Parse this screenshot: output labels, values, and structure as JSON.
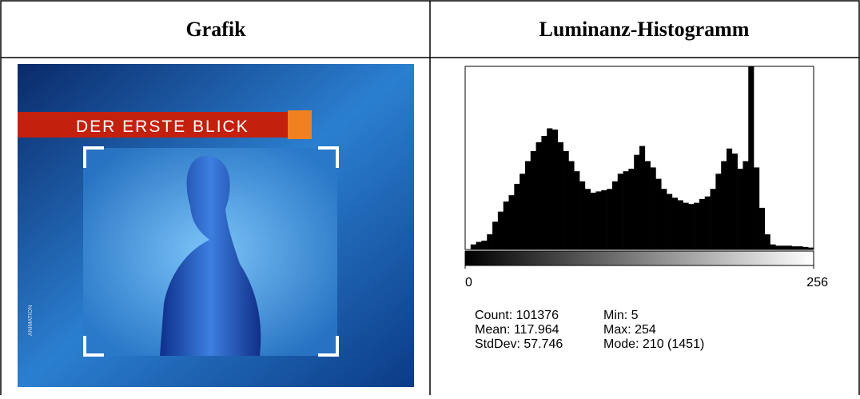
{
  "table": {
    "headers": [
      "Grafik",
      "Luminanz-Histogramm"
    ]
  },
  "image": {
    "banner": "DER ERSTE BLICK",
    "side_label": "ANIMATION"
  },
  "chart_data": {
    "type": "histogram",
    "color": "#000000",
    "bins": [
      0,
      4,
      8,
      12,
      16,
      20,
      24,
      28,
      32,
      36,
      40,
      44,
      48,
      52,
      56,
      60,
      64,
      68,
      72,
      76,
      80,
      84,
      88,
      92,
      96,
      100,
      104,
      108,
      112,
      116,
      120,
      124,
      128,
      132,
      136,
      140,
      144,
      148,
      152,
      156,
      160,
      164,
      168,
      172,
      176,
      180,
      184,
      188,
      192,
      196,
      200,
      204,
      208,
      212,
      216,
      220,
      224,
      228,
      232,
      236,
      240,
      244,
      248,
      252,
      256
    ],
    "values": [
      0,
      40,
      60,
      70,
      120,
      220,
      300,
      380,
      430,
      520,
      600,
      700,
      780,
      850,
      900,
      960,
      950,
      850,
      780,
      700,
      620,
      540,
      480,
      450,
      460,
      470,
      480,
      540,
      600,
      620,
      640,
      750,
      820,
      700,
      650,
      560,
      480,
      440,
      410,
      390,
      370,
      360,
      370,
      400,
      420,
      480,
      600,
      700,
      800,
      760,
      640,
      700,
      1451,
      650,
      330,
      120,
      40,
      30,
      30,
      30,
      25,
      25,
      20,
      15
    ],
    "xlim": [
      0,
      256
    ],
    "xticks": [
      0,
      256
    ],
    "ylim": [
      0,
      1451
    ]
  },
  "stats": [
    "Count: 101376",
    "Mean: 117.964",
    "StdDev: 57.746",
    "Min: 5",
    "Max: 254",
    "Mode: 210 (1451)"
  ]
}
